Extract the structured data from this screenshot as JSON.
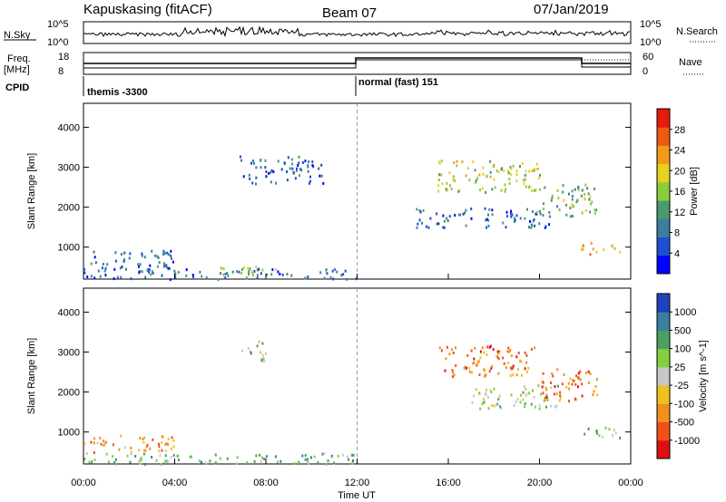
{
  "header": {
    "station": "Kapuskasing (fitACF)",
    "beam": "Beam 07",
    "date": "07/Jan/2019"
  },
  "sky_panel": {
    "left_label": "N.Sky",
    "left_ticks": [
      "10^5",
      "10^0"
    ],
    "right_label": "N.Search",
    "right_ticks": [
      "10^5",
      "10^0"
    ]
  },
  "freq_panel": {
    "left_label_1": "Freq.",
    "left_label_2": "[MHz]",
    "left_ticks": [
      "18",
      "8"
    ],
    "right_label": "Nave",
    "right_ticks": [
      "60",
      "0"
    ]
  },
  "cpid_panel": {
    "label": "CPID",
    "modes": [
      {
        "name": "themis -3300",
        "start_hour": 0
      },
      {
        "name": "normal (fast) 151",
        "start_hour": 12
      }
    ]
  },
  "chart_data": [
    {
      "type": "heatmap",
      "panel": "power",
      "ylabel": "Slant Range [km]",
      "y_ticks": [
        1000,
        2000,
        3000,
        4000
      ],
      "ylim": [
        200,
        4600
      ],
      "x_ticks": [
        "00:00",
        "04:00",
        "08:00",
        "12:00",
        "16:00",
        "20:00",
        "00:00"
      ],
      "xlim": [
        0,
        24
      ],
      "colorbar": {
        "label": "Power [dB]",
        "ticks": [
          "28",
          "24",
          "20",
          "16",
          "12",
          "8",
          "4"
        ],
        "range": [
          0,
          30
        ],
        "colors": [
          "#0000ff",
          "#1f4fd0",
          "#3a7f9f",
          "#4a9a70",
          "#8ccc3a",
          "#e6d21f",
          "#f39a1a",
          "#ee5a14",
          "#e61a0f"
        ]
      },
      "regions": [
        {
          "t0": 0.0,
          "t1": 12.0,
          "r0": 220,
          "r1": 500,
          "level": 8
        },
        {
          "t0": 0.0,
          "t1": 4.0,
          "r0": 500,
          "r1": 950,
          "level": 8
        },
        {
          "t0": 6.0,
          "t1": 8.5,
          "r0": 300,
          "r1": 550,
          "level": 20
        },
        {
          "t0": 6.8,
          "t1": 10.5,
          "r0": 2600,
          "r1": 3300,
          "level": 6
        },
        {
          "t0": 15.5,
          "t1": 20.0,
          "r0": 2400,
          "r1": 3200,
          "level": 20
        },
        {
          "t0": 14.5,
          "t1": 20.5,
          "r0": 1500,
          "r1": 2000,
          "level": 8
        },
        {
          "t0": 19.8,
          "t1": 22.5,
          "r0": 1800,
          "r1": 2600,
          "level": 16
        },
        {
          "t0": 21.8,
          "t1": 23.5,
          "r0": 850,
          "r1": 1150,
          "level": 24
        }
      ]
    },
    {
      "type": "heatmap",
      "panel": "velocity",
      "ylabel": "Slant Range [km]",
      "xlabel": "Time UT",
      "y_ticks": [
        1000,
        2000,
        3000,
        4000
      ],
      "ylim": [
        200,
        4600
      ],
      "x_ticks": [
        "00:00",
        "04:00",
        "08:00",
        "12:00",
        "16:00",
        "20:00",
        "00:00"
      ],
      "xlim": [
        0,
        24
      ],
      "colorbar": {
        "label": "Velocity [m s^-1]",
        "ticks": [
          "1000",
          "500",
          "100",
          "25",
          "-25",
          "-100",
          "-500",
          "-1000"
        ],
        "colors": [
          "#2040c0",
          "#3a7fa0",
          "#4aa060",
          "#80d040",
          "#c8c8c8",
          "#f0c020",
          "#f09020",
          "#f05018",
          "#e01010"
        ]
      },
      "regions": [
        {
          "t0": 0.0,
          "t1": 12.0,
          "r0": 220,
          "r1": 500,
          "velocity": 25
        },
        {
          "t0": 0.0,
          "t1": 4.0,
          "r0": 500,
          "r1": 950,
          "velocity": -100
        },
        {
          "t0": 6.8,
          "t1": 8.0,
          "r0": 2800,
          "r1": 3300,
          "velocity": 0
        },
        {
          "t0": 15.5,
          "t1": 19.8,
          "r0": 2400,
          "r1": 3200,
          "velocity": -500
        },
        {
          "t0": 17.0,
          "t1": 21.0,
          "r0": 1600,
          "r1": 2200,
          "velocity": 0
        },
        {
          "t0": 20.0,
          "t1": 22.5,
          "r0": 1800,
          "r1": 2600,
          "velocity": -500
        },
        {
          "t0": 21.8,
          "t1": 23.5,
          "r0": 850,
          "r1": 1150,
          "velocity": 25
        }
      ]
    }
  ]
}
